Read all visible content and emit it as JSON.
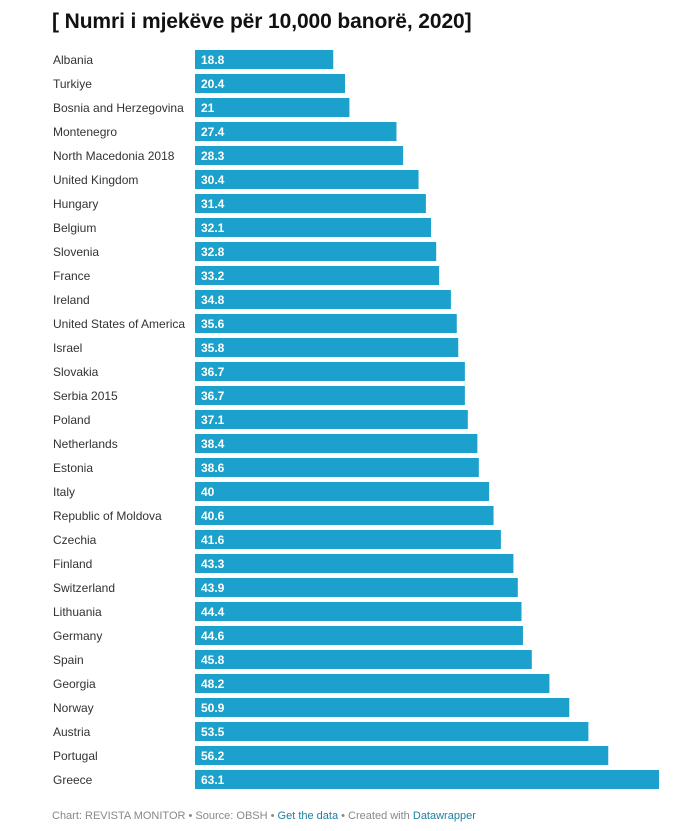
{
  "chart_data": {
    "type": "bar",
    "orientation": "horizontal",
    "title": "[ Numri i mjekëve për 10,000 banorë, 2020]",
    "categories": [
      "Albania",
      "Turkiye",
      "Bosnia and Herzegovina",
      "Montenegro",
      "North Macedonia 2018",
      "United Kingdom",
      "Hungary",
      "Belgium",
      "Slovenia",
      "France",
      "Ireland",
      "United States of America",
      "Israel",
      "Slovakia",
      "Serbia 2015",
      "Poland",
      "Netherlands",
      "Estonia",
      "Italy",
      "Republic of Moldova",
      "Czechia",
      "Finland",
      "Switzerland",
      "Lithuania",
      "Germany",
      "Spain",
      "Georgia",
      "Norway",
      "Austria",
      "Portugal",
      "Greece"
    ],
    "values": [
      18.8,
      20.4,
      21,
      27.4,
      28.3,
      30.4,
      31.4,
      32.1,
      32.8,
      33.2,
      34.8,
      35.6,
      35.8,
      36.7,
      36.7,
      37.1,
      38.4,
      38.6,
      40,
      40.6,
      41.6,
      43.3,
      43.9,
      44.4,
      44.6,
      45.8,
      48.2,
      50.9,
      53.5,
      56.2,
      63.1
    ],
    "xlim": [
      0,
      63.1
    ],
    "grid": false,
    "bar_color": "#1ba1cc"
  },
  "footer": {
    "chart_by": "Chart: REVISTA MONITOR",
    "source": "Source: OBSH",
    "get_data": "Get the data",
    "created_with": "Created with",
    "tool": "Datawrapper",
    "separator": " • "
  }
}
